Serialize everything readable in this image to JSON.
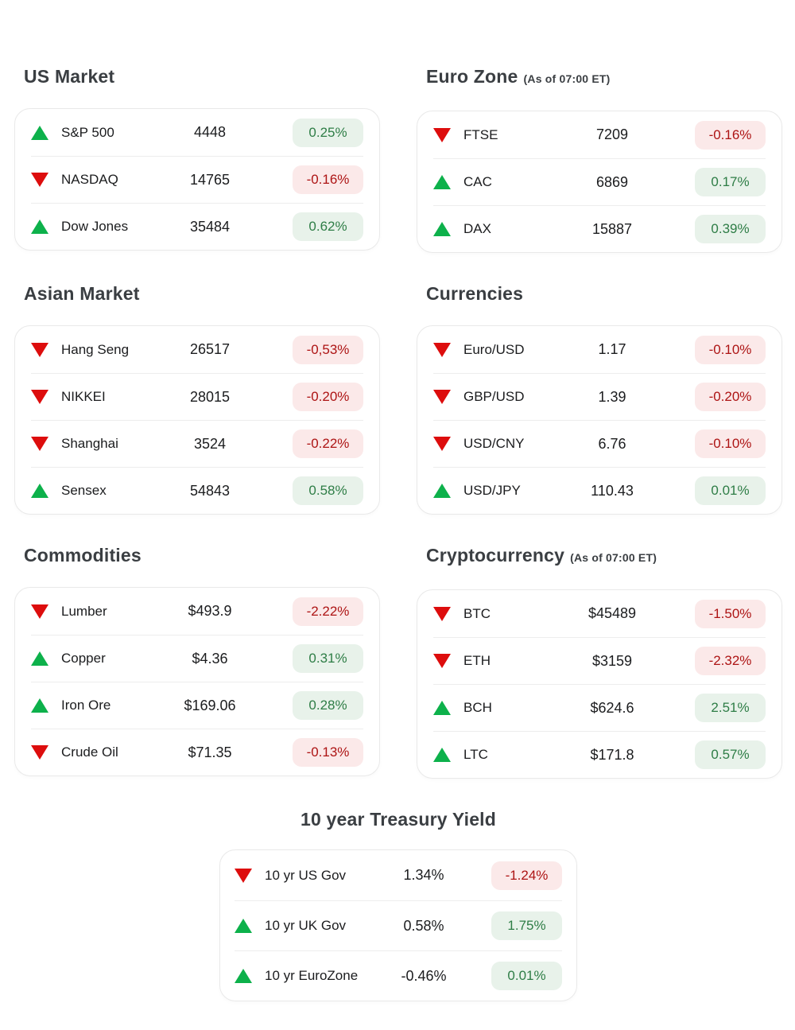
{
  "colors": {
    "green": "#0db14b",
    "red": "#dd0d0d",
    "pos_bg": "#e8f2ea",
    "pos_text": "#2e7d46",
    "neg_bg": "#fbe9e9",
    "neg_text": "#ad1414",
    "title_text": "#3a3e42",
    "row_text": "#1b1c1e",
    "divider": "#ededed",
    "card_border": "#e9e9e9",
    "page_bg": "#ffffff"
  },
  "sections": [
    {
      "id": "us-market",
      "title": "US Market",
      "suffix": "",
      "rows": [
        {
          "direction": "up",
          "label": "S&P 500",
          "value": "4448",
          "change": "0.25%",
          "tone": "positive"
        },
        {
          "direction": "down",
          "label": "NASDAQ",
          "value": "14765",
          "change": "-0.16%",
          "tone": "negative"
        },
        {
          "direction": "up",
          "label": "Dow Jones",
          "value": "35484",
          "change": "0.62%",
          "tone": "positive"
        }
      ]
    },
    {
      "id": "euro-zone",
      "title": "Euro Zone",
      "suffix": "(As of 07:00 ET)",
      "rows": [
        {
          "direction": "down",
          "label": "FTSE",
          "value": "7209",
          "change": "-0.16%",
          "tone": "negative"
        },
        {
          "direction": "up",
          "label": "CAC",
          "value": "6869",
          "change": "0.17%",
          "tone": "positive"
        },
        {
          "direction": "up",
          "label": "DAX",
          "value": "15887",
          "change": "0.39%",
          "tone": "positive"
        }
      ]
    },
    {
      "id": "asian-market",
      "title": "Asian Market",
      "suffix": "",
      "rows": [
        {
          "direction": "down",
          "label": "Hang Seng",
          "value": "26517",
          "change": "-0,53%",
          "tone": "negative"
        },
        {
          "direction": "down",
          "label": "NIKKEI",
          "value": "28015",
          "change": "-0.20%",
          "tone": "negative"
        },
        {
          "direction": "down",
          "label": "Shanghai",
          "value": "3524",
          "change": "-0.22%",
          "tone": "negative"
        },
        {
          "direction": "up",
          "label": "Sensex",
          "value": "54843",
          "change": "0.58%",
          "tone": "positive"
        }
      ]
    },
    {
      "id": "currencies",
      "title": "Currencies",
      "suffix": "",
      "rows": [
        {
          "direction": "down",
          "label": "Euro/USD",
          "value": "1.17",
          "change": "-0.10%",
          "tone": "negative"
        },
        {
          "direction": "down",
          "label": "GBP/USD",
          "value": "1.39",
          "change": "-0.20%",
          "tone": "negative"
        },
        {
          "direction": "down",
          "label": "USD/CNY",
          "value": "6.76",
          "change": "-0.10%",
          "tone": "negative"
        },
        {
          "direction": "up",
          "label": "USD/JPY",
          "value": "110.43",
          "change": "0.01%",
          "tone": "positive"
        }
      ]
    },
    {
      "id": "commodities",
      "title": "Commodities",
      "suffix": "",
      "rows": [
        {
          "direction": "down",
          "label": "Lumber",
          "value": "$493.9",
          "change": "-2.22%",
          "tone": "negative"
        },
        {
          "direction": "up",
          "label": "Copper",
          "value": "$4.36",
          "change": "0.31%",
          "tone": "positive"
        },
        {
          "direction": "up",
          "label": "Iron Ore",
          "value": "$169.06",
          "change": "0.28%",
          "tone": "positive"
        },
        {
          "direction": "down",
          "label": "Crude Oil",
          "value": "$71.35",
          "change": "-0.13%",
          "tone": "negative"
        }
      ]
    },
    {
      "id": "cryptocurrency",
      "title": "Cryptocurrency",
      "suffix": "(As of 07:00 ET)",
      "rows": [
        {
          "direction": "down",
          "label": "BTC",
          "value": "$45489",
          "change": "-1.50%",
          "tone": "negative"
        },
        {
          "direction": "down",
          "label": "ETH",
          "value": "$3159",
          "change": "-2.32%",
          "tone": "negative"
        },
        {
          "direction": "up",
          "label": "BCH",
          "value": "$624.6",
          "change": "2.51%",
          "tone": "positive"
        },
        {
          "direction": "up",
          "label": "LTC",
          "value": "$171.8",
          "change": "0.57%",
          "tone": "positive"
        }
      ]
    },
    {
      "id": "treasury-yield",
      "title": "10 year Treasury Yield",
      "suffix": "",
      "rows": [
        {
          "direction": "down",
          "label": "10 yr US Gov",
          "value": "1.34%",
          "change": "-1.24%",
          "tone": "negative"
        },
        {
          "direction": "up",
          "label": "10 yr UK Gov",
          "value": "0.58%",
          "change": "1.75%",
          "tone": "positive"
        },
        {
          "direction": "up",
          "label": "10 yr EuroZone",
          "value": "-0.46%",
          "change": "0.01%",
          "tone": "positive"
        }
      ]
    }
  ]
}
